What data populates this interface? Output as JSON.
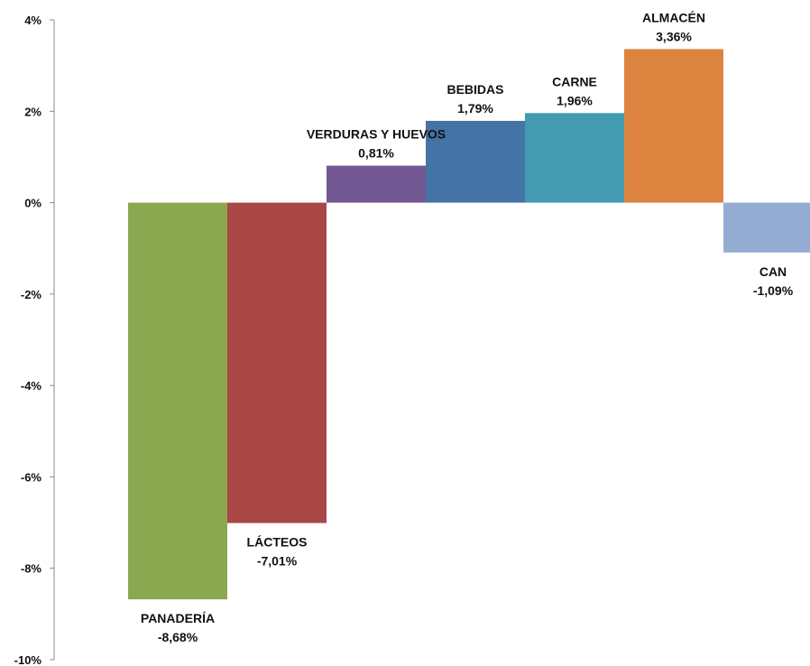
{
  "chart_data": {
    "type": "bar",
    "title": "",
    "xlabel": "",
    "ylabel": "",
    "ylim": [
      -10,
      4
    ],
    "grid": false,
    "legend": "none",
    "y_ticks": [
      "4%",
      "2%",
      "0%",
      "-2%",
      "-4%",
      "-6%",
      "-8%",
      "-10%"
    ],
    "y_tick_values": [
      4,
      2,
      0,
      -2,
      -4,
      -6,
      -8,
      -10
    ],
    "categories": [
      "PANADERÍA",
      "LÁCTEOS",
      "VERDURAS Y HUEVOS",
      "BEBIDAS",
      "CARNE",
      "ALMACÉN",
      "CAN"
    ],
    "values": [
      -8.68,
      -7.01,
      0.81,
      1.79,
      1.96,
      3.36,
      -1.09
    ],
    "value_labels": [
      "-8,68%",
      "-7,01%",
      "0,81%",
      "1,79%",
      "1,96%",
      "3,36%",
      "-1,09%"
    ],
    "colors": [
      "#8aa84f",
      "#a94646",
      "#725892",
      "#4473a6",
      "#429bb0",
      "#dc843f",
      "#95acd3"
    ]
  }
}
